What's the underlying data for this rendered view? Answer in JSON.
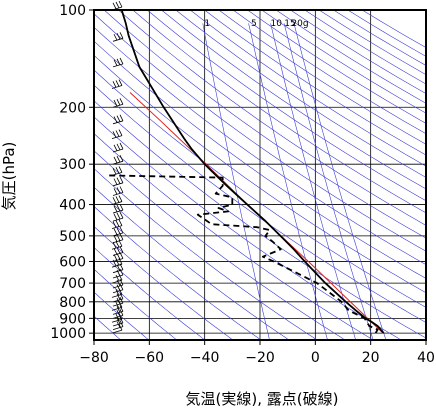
{
  "chart_data": {
    "type": "line",
    "subtype": "skew-T log-P diagram",
    "xlabel": "気温(実線), 露点(破線)",
    "ylabel": "気圧(hPa)",
    "xlim": [
      -80,
      40
    ],
    "ylim": [
      1050,
      100
    ],
    "y_scale": "log",
    "x_ticks": [
      -80,
      -60,
      -40,
      -20,
      0,
      20,
      40
    ],
    "x_tick_labels": [
      "−80",
      "−60",
      "−40",
      "−20",
      "0",
      "20",
      "40"
    ],
    "y_ticks": [
      100,
      200,
      300,
      400,
      500,
      600,
      700,
      800,
      900,
      1000
    ],
    "grid": true,
    "mixing_ratio_labels": [
      "1",
      "5",
      "10",
      "15",
      "20g"
    ],
    "mixing_ratio_values": [
      1,
      5,
      10,
      15,
      20
    ],
    "colors": {
      "temperature": "#000000",
      "dewpoint": "#000000",
      "adiabats": "#3b3bd6",
      "reference_line": "#e02020",
      "grid": "#000000"
    },
    "series": [
      {
        "role": "temperature",
        "style": "solid",
        "points": [
          [
            1000,
            24.7
          ],
          [
            950,
            22.5
          ],
          [
            925,
            20.5
          ],
          [
            900,
            18.2
          ],
          [
            850,
            14.6
          ],
          [
            800,
            11.0
          ],
          [
            700,
            3.6
          ],
          [
            600,
            -3.8
          ],
          [
            550,
            -7.8
          ],
          [
            500,
            -12.6
          ],
          [
            450,
            -18.0
          ],
          [
            400,
            -24.6
          ],
          [
            350,
            -32.0
          ],
          [
            300,
            -40.0
          ],
          [
            270,
            -44.6
          ],
          [
            250,
            -47.4
          ],
          [
            200,
            -54.8
          ],
          [
            150,
            -63.6
          ],
          [
            120,
            -67.5
          ],
          [
            110,
            -68.5
          ],
          [
            100,
            -70.0
          ]
        ]
      },
      {
        "role": "dewpoint",
        "style": "dashed",
        "points": [
          [
            1000,
            21.8
          ],
          [
            975,
            22.5
          ],
          [
            950,
            19.5
          ],
          [
            900,
            17.8
          ],
          [
            850,
            12.0
          ],
          [
            800,
            9.5
          ],
          [
            700,
            0.6
          ],
          [
            600,
            -15.0
          ],
          [
            580,
            -19.0
          ],
          [
            550,
            -12.5
          ],
          [
            520,
            -15.5
          ],
          [
            500,
            -18.0
          ],
          [
            480,
            -16.5
          ],
          [
            470,
            -21.0
          ],
          [
            460,
            -37.5
          ],
          [
            430,
            -42.5
          ],
          [
            420,
            -31.5
          ],
          [
            410,
            -35.0
          ],
          [
            400,
            -30.0
          ],
          [
            380,
            -30.0
          ],
          [
            370,
            -36.0
          ],
          [
            350,
            -33.5
          ],
          [
            330,
            -33.5
          ],
          [
            325,
            -75.0
          ]
        ]
      }
    ],
    "reference_line": {
      "style": "solid",
      "points": [
        [
          1000,
          24.5
        ],
        [
          600,
          -2.5
        ],
        [
          400,
          -24.5
        ],
        [
          300,
          -39.5
        ],
        [
          220,
          -56.0
        ],
        [
          180,
          -67.0
        ]
      ]
    },
    "wind_profile": {
      "type": "wind barbs",
      "side": "left",
      "levels_hpa": [
        1000,
        975,
        950,
        925,
        900,
        875,
        850,
        825,
        800,
        775,
        750,
        725,
        700,
        675,
        650,
        625,
        600,
        575,
        550,
        525,
        500,
        475,
        450,
        425,
        400,
        375,
        350,
        325,
        300,
        275,
        250,
        225,
        200,
        175,
        150,
        125,
        100
      ],
      "barb_counts": [
        1,
        2,
        2,
        2,
        2,
        2,
        2,
        2,
        2,
        2,
        2,
        2,
        2,
        2,
        2,
        3,
        3,
        3,
        3,
        3,
        3,
        3,
        3,
        3,
        3,
        3,
        3,
        3,
        3,
        3,
        3,
        3,
        3,
        3,
        3,
        3,
        3
      ]
    }
  }
}
